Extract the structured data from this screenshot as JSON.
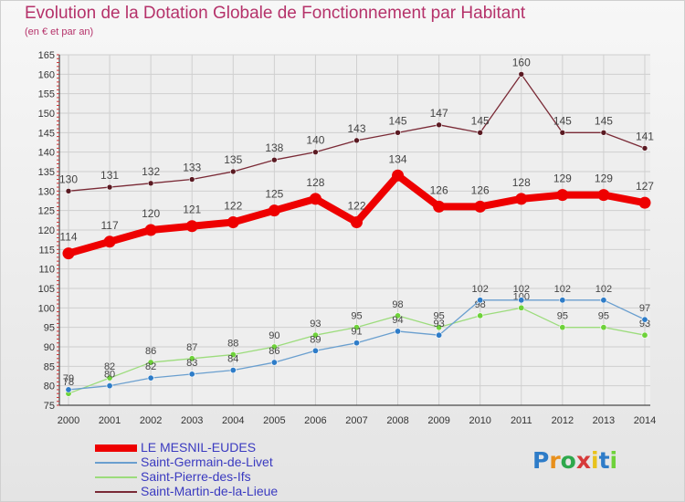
{
  "chart_data": {
    "type": "line",
    "title": "Evolution de la Dotation Globale de Fonctionnement par Habitant",
    "subtitle": "(en € et par an)",
    "xlabel": "",
    "ylabel": "",
    "categories": [
      "2000",
      "2001",
      "2002",
      "2003",
      "2004",
      "2005",
      "2006",
      "2007",
      "2008",
      "2009",
      "2010",
      "2011",
      "2012",
      "2013",
      "2014"
    ],
    "ylim": [
      75,
      165
    ],
    "yticks": [
      75,
      80,
      85,
      90,
      95,
      100,
      105,
      110,
      115,
      120,
      125,
      130,
      135,
      140,
      145,
      150,
      155,
      160,
      165
    ],
    "legend_position": "bottom-left",
    "series": [
      {
        "name": "LE MESNIL-EUDES",
        "color": "#ee0000",
        "values": [
          114,
          117,
          120,
          121,
          122,
          125,
          128,
          122,
          134,
          126,
          126,
          128,
          129,
          129,
          127
        ]
      },
      {
        "name": "Saint-Germain-de-Livet",
        "color": "#6a9fcf",
        "values": [
          79,
          80,
          82,
          83,
          84,
          86,
          89,
          91,
          94,
          93,
          102,
          102,
          102,
          102,
          97
        ]
      },
      {
        "name": "Saint-Pierre-des-Ifs",
        "color": "#9cdc7c",
        "values": [
          78,
          82,
          86,
          87,
          88,
          90,
          93,
          95,
          98,
          95,
          98,
          100,
          95,
          95,
          93
        ]
      },
      {
        "name": "Saint-Martin-de-la-Lieue",
        "color": "#7a2a36",
        "values": [
          130,
          131,
          132,
          133,
          135,
          138,
          140,
          143,
          145,
          147,
          145,
          160,
          145,
          145,
          141
        ]
      }
    ]
  },
  "logo": {
    "text": "Proxiti"
  }
}
